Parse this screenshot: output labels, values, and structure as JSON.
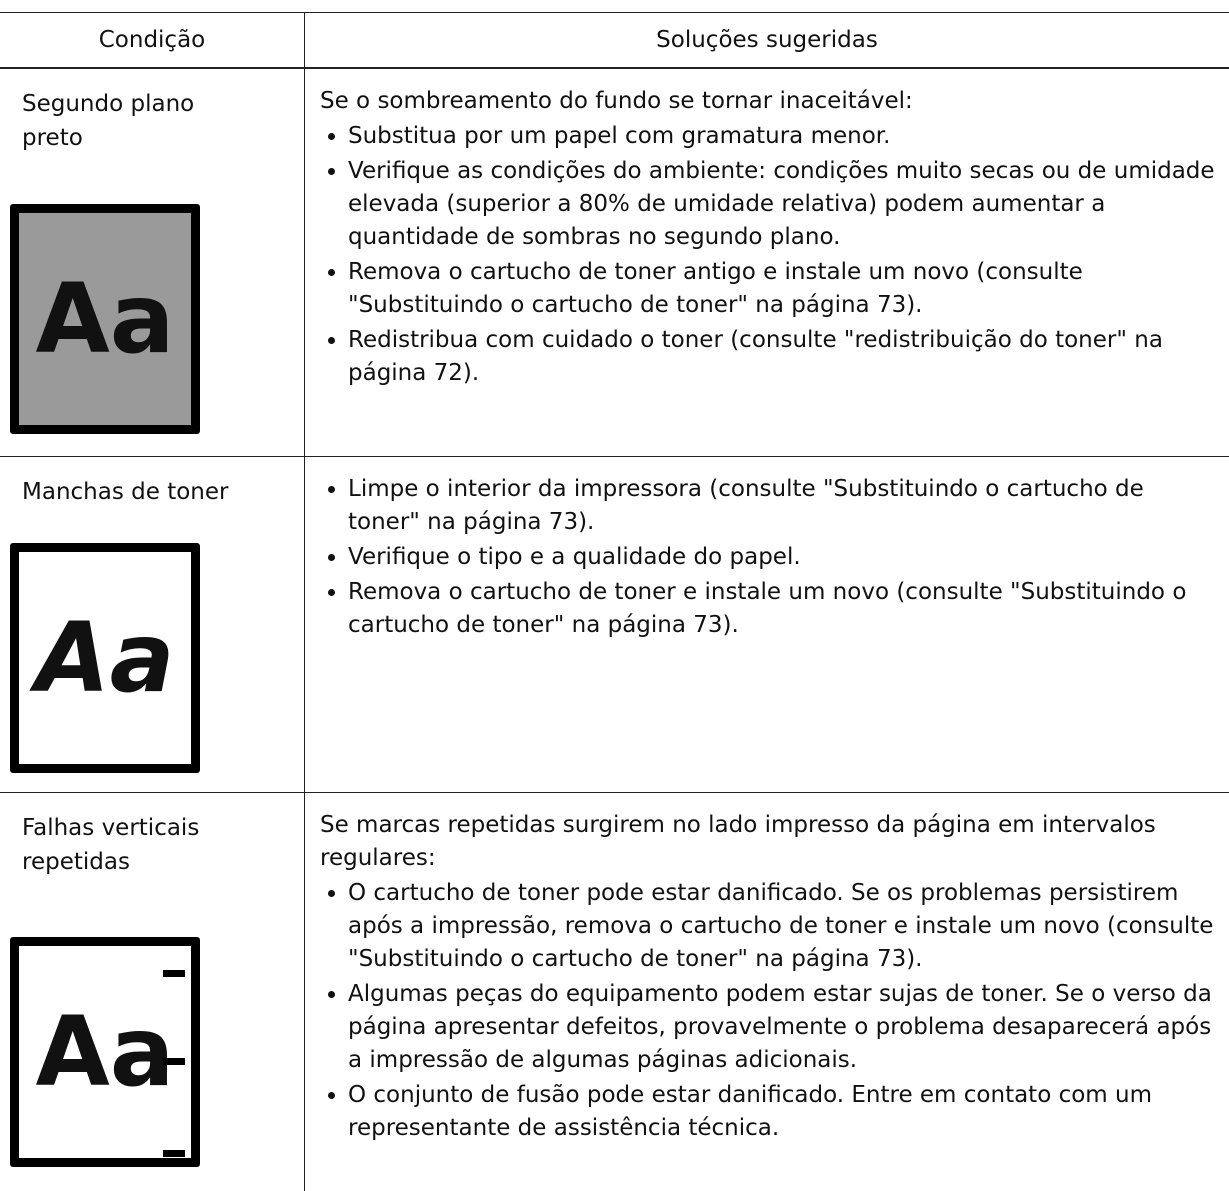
{
  "table": {
    "headers": [
      "Condição",
      "Soluções sugeridas"
    ],
    "rows": [
      {
        "condition": [
          "Segundo plano",
          "preto"
        ],
        "illustration": "Aa",
        "intro": "Se o sombreamento do fundo se tornar inaceitável:",
        "bullets": [
          "Substitua por um papel com gramatura menor.",
          "Verifique as condições do ambiente: condições muito secas ou de umidade elevada (superior a 80% de umidade relativa) podem aumentar a quantidade de sombras no segundo plano.",
          "Remova o cartucho de toner antigo e instale um novo (consulte \"Substituindo o cartucho de toner\" na página 73).",
          "Redistribua com cuidado o toner (consulte \"redistribuição do toner\" na página 72)."
        ]
      },
      {
        "condition": [
          "Manchas de toner"
        ],
        "illustration": "Aa",
        "bullets": [
          "Limpe o interior da impressora (consulte \"Substituindo o cartucho de toner\" na página 73).",
          "Verifique o tipo e a qualidade do papel.",
          "Remova o cartucho de toner e instale um novo (consulte \"Substituindo o cartucho de toner\" na página 73)."
        ]
      },
      {
        "condition": [
          "Falhas verticais",
          "repetidas"
        ],
        "illustration": "Aa",
        "intro": "Se marcas repetidas surgirem no lado impresso da página em intervalos regulares:",
        "bullets": [
          "O cartucho de toner pode estar danificado. Se os problemas persistirem após a impressão, remova o cartucho de toner e instale um novo (consulte \"Substituindo o cartucho de toner\" na página 73).",
          "Algumas peças do equipamento podem estar sujas de toner. Se o verso da página apresentar defeitos, provavelmente o problema desaparecerá após a impressão de algumas páginas adicionais.",
          "O conjunto de fusão pode estar danificado. Entre em contato com um representante de assistência técnica."
        ]
      }
    ]
  }
}
